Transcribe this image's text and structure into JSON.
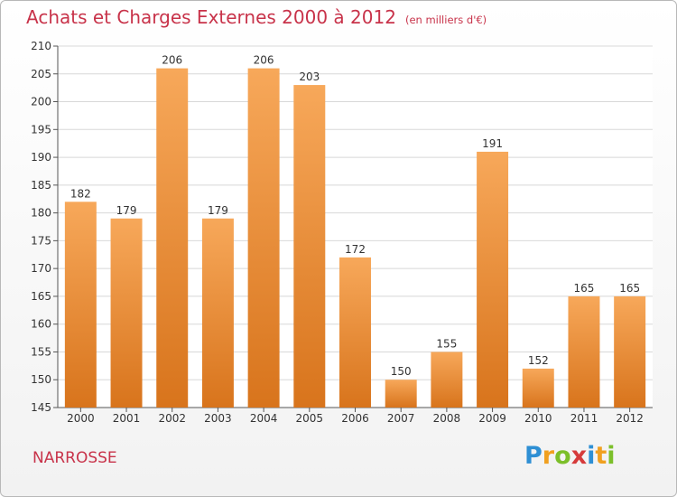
{
  "header": {
    "title": "Achats et Charges Externes 2000 à 2012",
    "unit": "(en milliers d'€)"
  },
  "footer": {
    "town": "NARROSSE",
    "brand": "Proxiti",
    "brand_letters": [
      {
        "ch": "P",
        "color": "#2e8fd4"
      },
      {
        "ch": "r",
        "color": "#f0a020"
      },
      {
        "ch": "o",
        "color": "#7cbf2a"
      },
      {
        "ch": "x",
        "color": "#d63b3b"
      },
      {
        "ch": "i",
        "color": "#2e8fd4"
      },
      {
        "ch": "t",
        "color": "#f0a020"
      },
      {
        "ch": "i",
        "color": "#7cbf2a"
      }
    ]
  },
  "colors": {
    "title": "#c8334a",
    "bar_top": "#f7a85a",
    "bar_bottom": "#d8741c",
    "grid": "#d8d8d8",
    "axis": "#555555"
  },
  "chart_data": {
    "type": "bar",
    "categories": [
      "2000",
      "2001",
      "2002",
      "2003",
      "2004",
      "2005",
      "2006",
      "2007",
      "2008",
      "2009",
      "2010",
      "2011",
      "2012"
    ],
    "values": [
      182,
      179,
      206,
      179,
      206,
      203,
      172,
      150,
      155,
      191,
      152,
      165,
      165
    ],
    "data_labels": [
      "182",
      "179",
      "206",
      "179",
      "206",
      "203",
      "172",
      "150",
      "155",
      "191",
      "152",
      "165",
      "165"
    ],
    "ylim": [
      145,
      210
    ],
    "yticks": [
      145,
      150,
      155,
      160,
      165,
      170,
      175,
      180,
      185,
      190,
      195,
      200,
      205,
      210
    ],
    "grid": true,
    "legend": "none"
  }
}
